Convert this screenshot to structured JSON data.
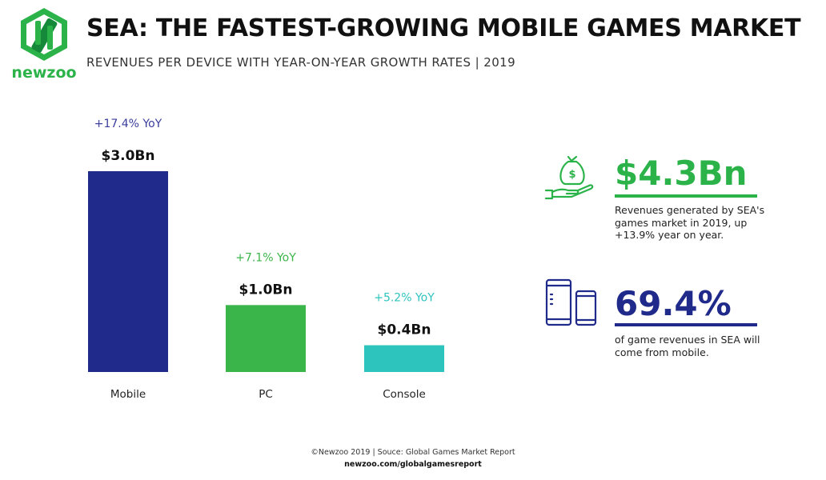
{
  "brand": {
    "name": "newzoo",
    "color": "#2bb34a"
  },
  "header": {
    "title": "SEA: THE FASTEST-GROWING MOBILE GAMES MARKET",
    "subtitle": "REVENUES PER DEVICE WITH YEAR-ON-YEAR GROWTH RATES | 2019"
  },
  "chart_data": {
    "type": "bar",
    "categories": [
      "Mobile",
      "PC",
      "Console"
    ],
    "values": [
      3.0,
      1.0,
      0.4
    ],
    "value_labels": [
      "$3.0Bn",
      "$1.0Bn",
      "$0.4Bn"
    ],
    "growth_labels": [
      "+17.4% YoY",
      "+7.1% YoY",
      "+5.2% YoY"
    ],
    "colors": [
      "#1f2a8a",
      "#3ab54a",
      "#2ec4be"
    ],
    "growth_colors": [
      "#3b3f9c",
      "#3ab54a",
      "#2ec4be"
    ],
    "title": "",
    "xlabel": "",
    "ylabel": "",
    "ylim": [
      0,
      3.0
    ],
    "grid": false,
    "legend": "none"
  },
  "stats": [
    {
      "value": "$4.3Bn",
      "color": "#2bb34a",
      "icon": "money-bag-hand-icon",
      "text": "Revenues generated by SEA's games market in 2019, up +13.9% year on year."
    },
    {
      "value": "69.4%",
      "color": "#1f2a8a",
      "icon": "phone-tablet-icon",
      "text": "of game revenues in SEA will come from mobile."
    }
  ],
  "footer": {
    "source": "©Newzoo 2019 | Souce: Global Games Market Report",
    "url": "newzoo.com/globalgamesreport"
  }
}
